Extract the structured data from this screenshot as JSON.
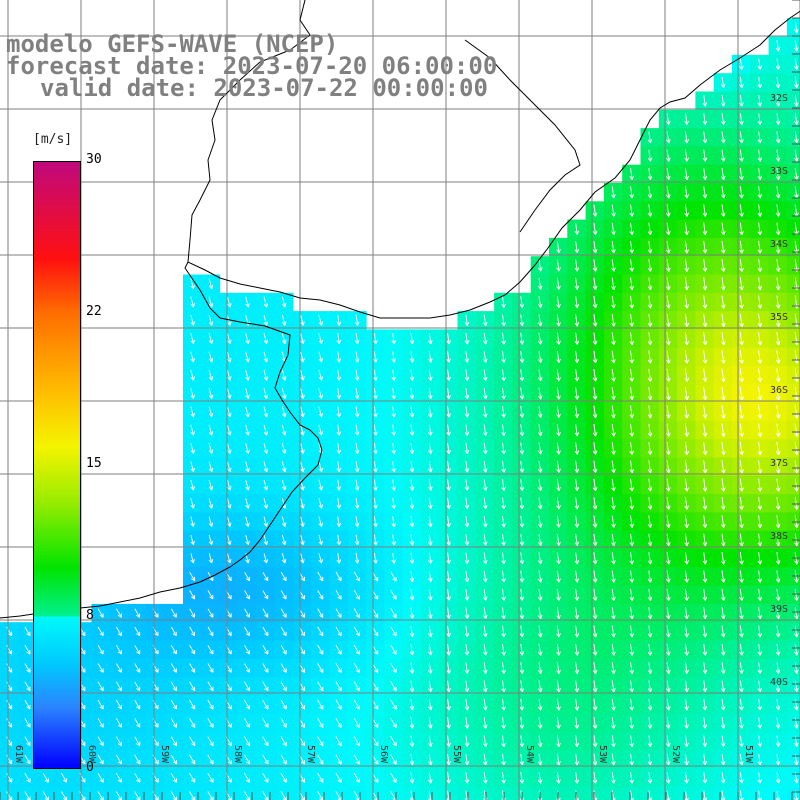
{
  "title": {
    "line1": "modelo GEFS-WAVE (NCEP)",
    "line2": "forecast date: 2023-07-20 06:00:00",
    "line3": "valid date: 2023-07-22 00:00:00"
  },
  "colorbar": {
    "unit": "[m/s]",
    "ticks": [
      "30",
      "22",
      "15",
      "8",
      "0"
    ],
    "colors": [
      "#c0087c",
      "#ff1010",
      "#ff6e00",
      "#f4f400",
      "#00e400",
      "#00fafa",
      "#2b84ff",
      "#0000ff"
    ]
  },
  "lat_labels": [
    "32S",
    "33S",
    "34S",
    "35S",
    "36S",
    "37S",
    "38S",
    "39S",
    "40S"
  ],
  "lon_labels": [
    "61W",
    "60W",
    "59W",
    "58W",
    "57W",
    "56W",
    "55W",
    "54W",
    "53W",
    "52W",
    "51W"
  ],
  "map_colors": {
    "land": "#ffffff",
    "coast": "#000000",
    "grid": "#808080",
    "arrow": "#ffffff"
  }
}
